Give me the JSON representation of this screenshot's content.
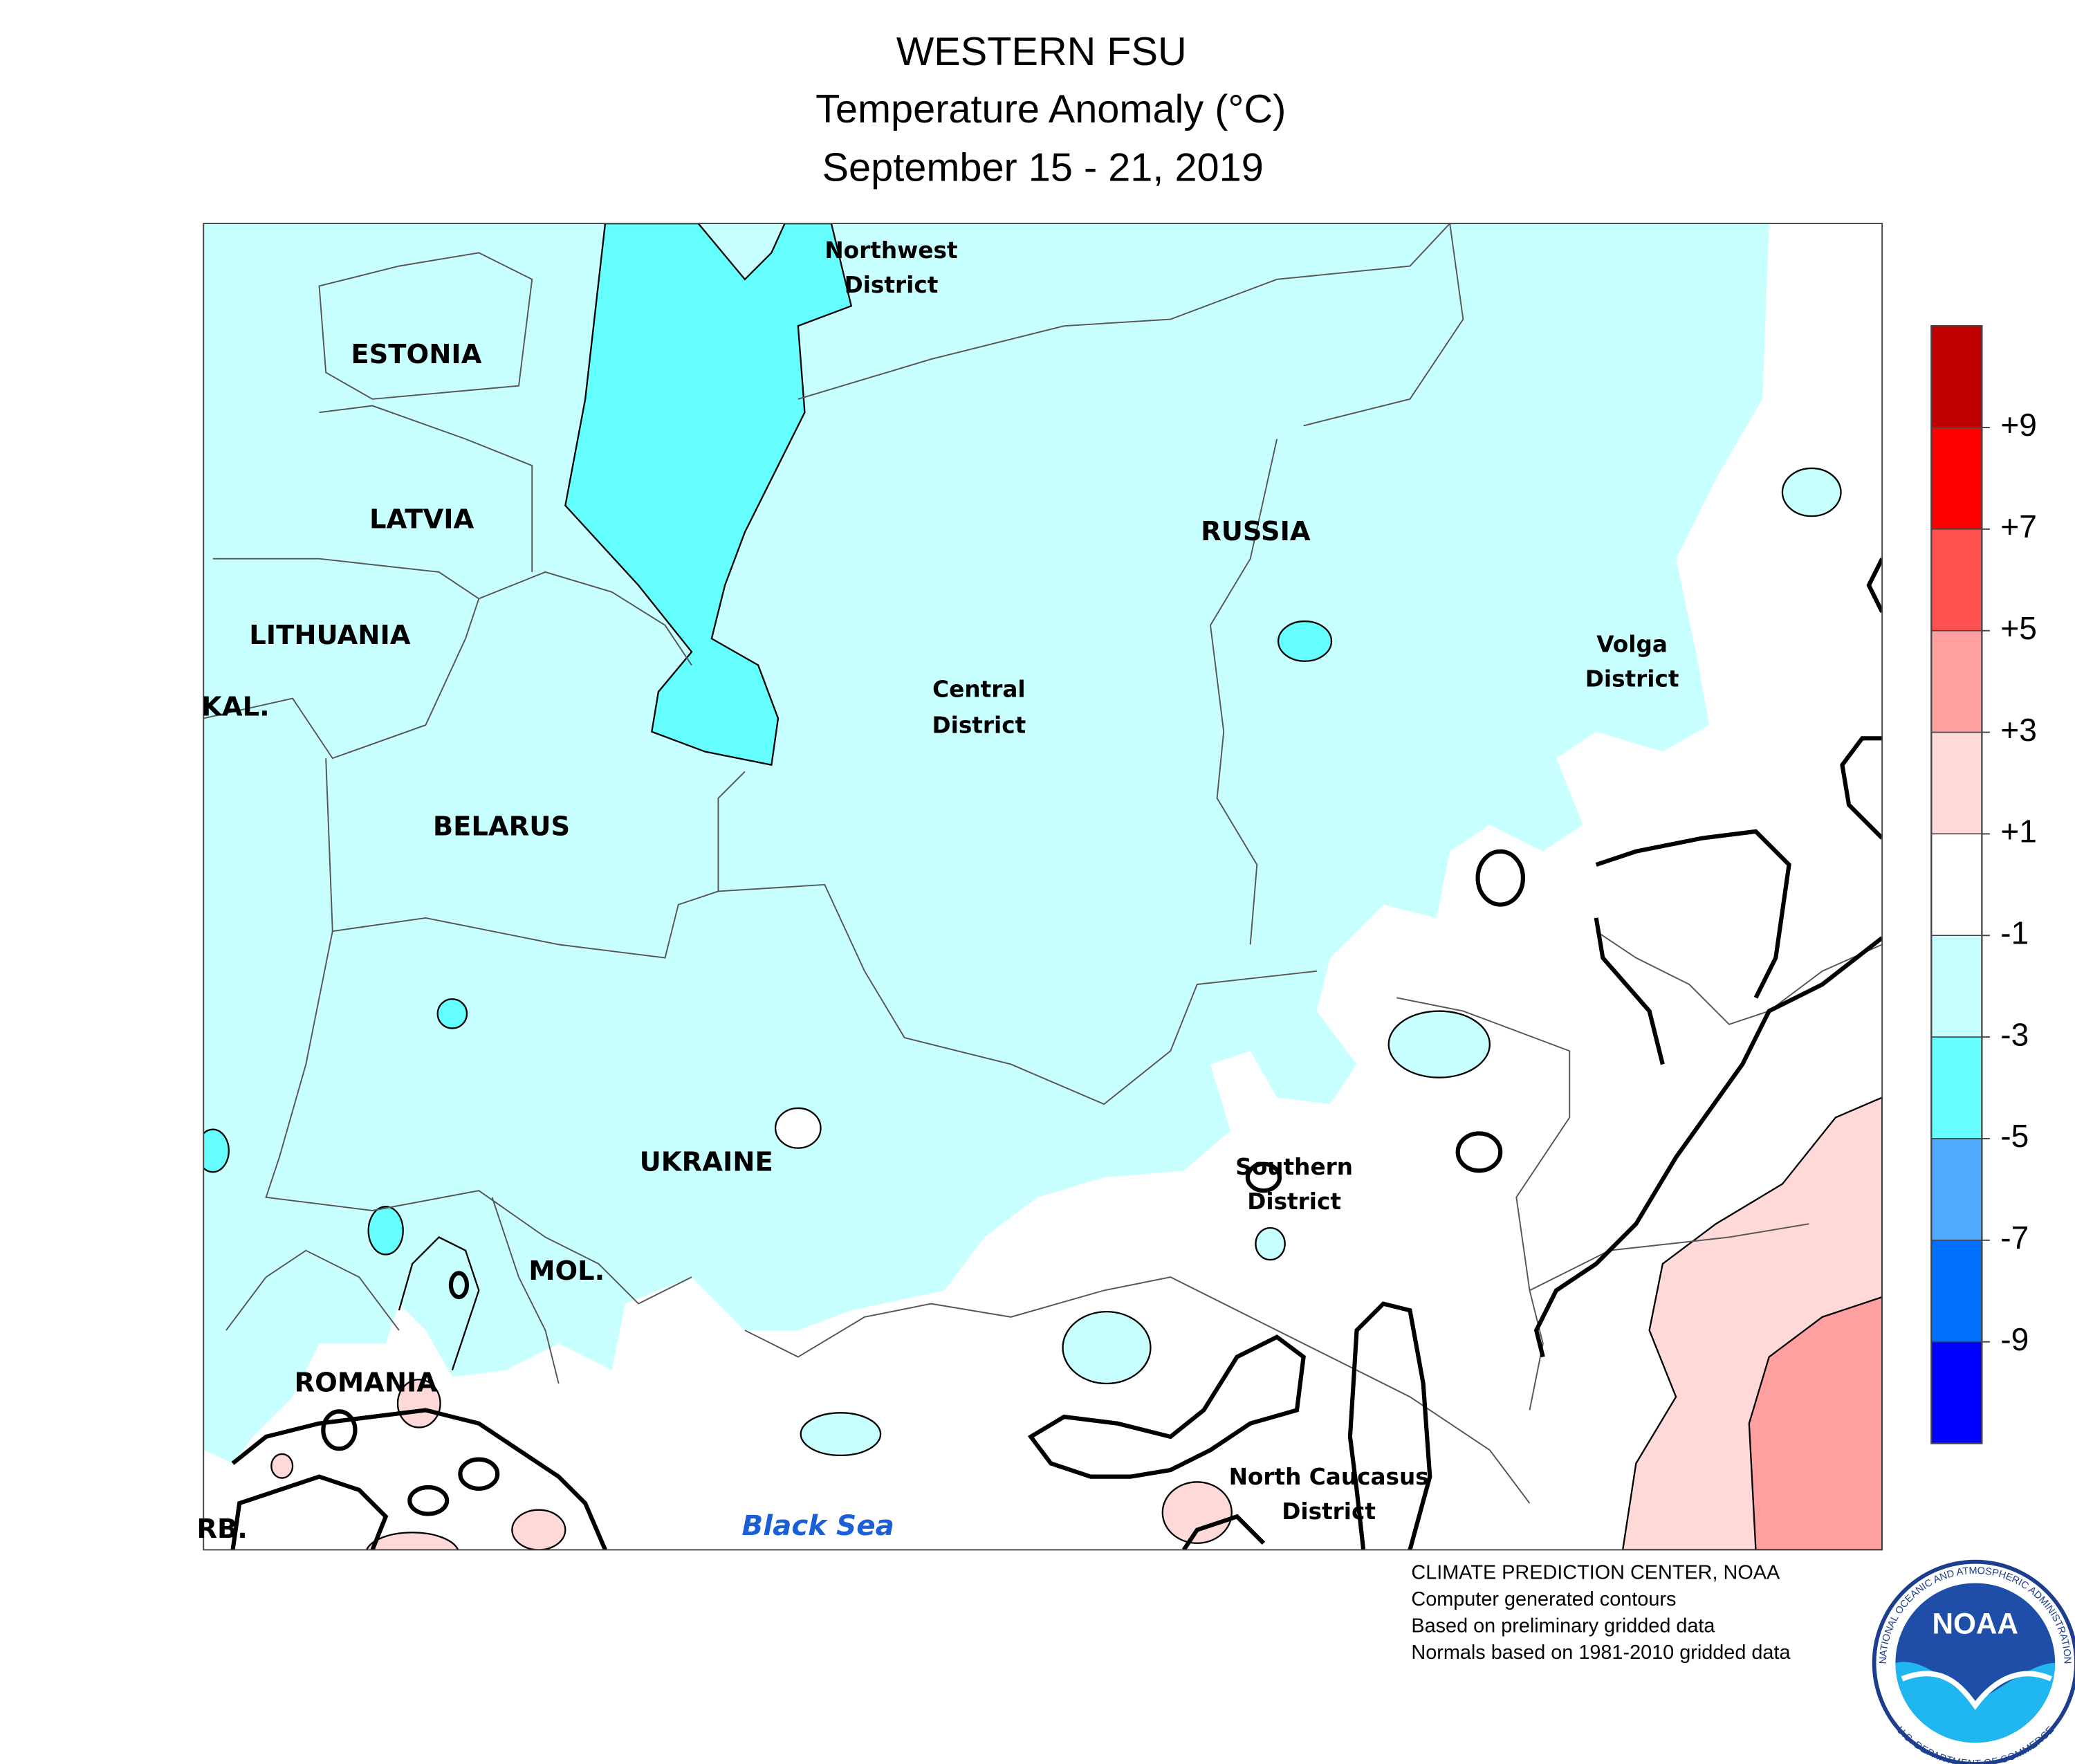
{
  "title": [
    "WESTERN FSU",
    "Temperature Anomaly (°C)",
    "September 15 - 21, 2019"
  ],
  "countries": [
    "ESTONIA",
    "LATVIA",
    "LITHUANIA",
    "KAL.",
    "BELARUS",
    "UKRAINE",
    "MOL.",
    "ROMANIA",
    "RB.",
    "RUSSIA"
  ],
  "districts": [
    [
      "Northwest",
      "District"
    ],
    [
      "Central",
      "District"
    ],
    [
      "Volga",
      "District"
    ],
    [
      "Southern",
      "District"
    ],
    [
      "North Caucasus",
      "District"
    ]
  ],
  "sea": "Black Sea",
  "legend": {
    "colors": [
      "#c00000",
      "#ff0000",
      "#ff5050",
      "#ffa0a0",
      "#ffd8d8",
      "#ffffff",
      "#c8ffff",
      "#66ffff",
      "#50a8ff",
      "#0070ff",
      "#0000ff"
    ],
    "ticks": [
      {
        "value": 9,
        "label": "+9"
      },
      {
        "value": 7,
        "label": "+7"
      },
      {
        "value": 5,
        "label": "+5"
      },
      {
        "value": 3,
        "label": "+3"
      },
      {
        "value": 1,
        "label": "+1"
      },
      -1,
      -3,
      -5,
      -7,
      -9
    ]
  },
  "credits": [
    "CLIMATE PREDICTION CENTER, NOAA",
    "Computer generated contours",
    "Based on preliminary gridded data",
    "Normals based on 1981-2010 gridded data"
  ],
  "logo": {
    "center": "NOAA",
    "ring_top": "NATIONAL OCEANIC AND ATMOSPHERIC ADMINISTRATION",
    "ring_bottom": "U.S. DEPARTMENT OF COMMERCE"
  }
}
